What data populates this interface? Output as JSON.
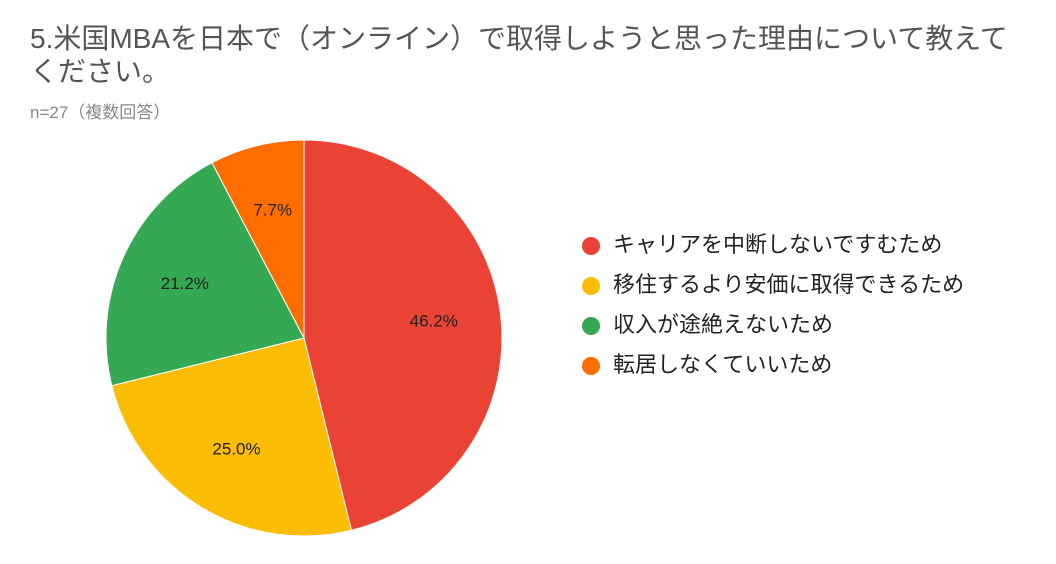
{
  "chart_data": {
    "type": "pie",
    "title": "5.米国MBAを日本で（オンライン）で取得しようと思った理由について教えてください。",
    "subtitle": "n=27（複数回答）",
    "categories": [
      "キャリアを中断しないですむため",
      "移住するより安価に取得できるため",
      "収入が途絶えないため",
      "転居しなくていいため"
    ],
    "values": [
      46.2,
      25.0,
      21.2,
      7.7
    ],
    "value_labels": [
      "46.2%",
      "25.0%",
      "21.2%",
      "7.7%"
    ],
    "colors": [
      "#ea4335",
      "#fbbc04",
      "#34a853",
      "#ff6d01"
    ],
    "legend": "right"
  }
}
